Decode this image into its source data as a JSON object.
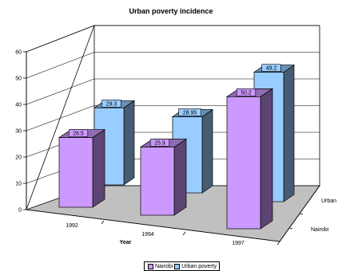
{
  "chart_data": {
    "type": "bar",
    "title": "Urban poverty incidence",
    "xlabel": "Year",
    "ylabel": "",
    "categories": [
      "1992",
      "1994",
      "1997"
    ],
    "depth_categories": [
      "Urban",
      "Nairobi"
    ],
    "ylim": [
      0,
      60
    ],
    "yticks": [
      0,
      10,
      20,
      30,
      40,
      50,
      60
    ],
    "grid": true,
    "legend_position": "bottom",
    "series": [
      {
        "name": "Nairobi",
        "values": [
          26.5,
          25.9,
          50.2
        ],
        "labels": [
          "26.5",
          "25.9",
          "50.2"
        ],
        "color": "#CC99FF"
      },
      {
        "name": "Urban poverty",
        "values": [
          29.3,
          28.95,
          49.2
        ],
        "labels": [
          "29.3",
          "28.95",
          "49.2"
        ],
        "color": "#99CCFF"
      }
    ]
  }
}
